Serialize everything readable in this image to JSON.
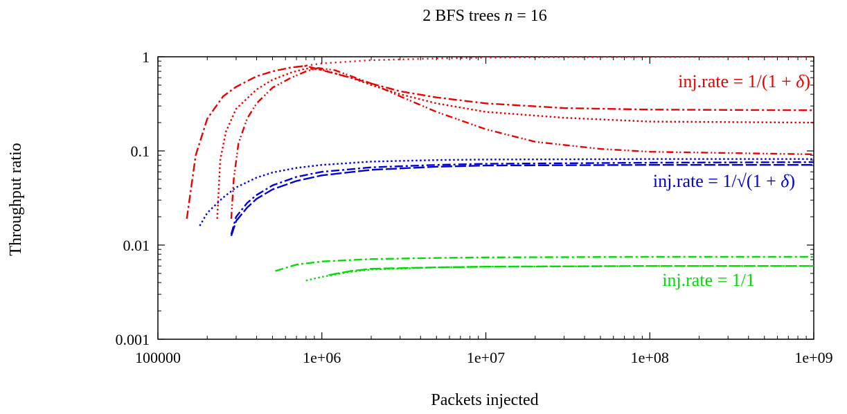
{
  "chart_data": {
    "type": "line",
    "title_prefix": "2 BFS trees ",
    "title_math": "n",
    "title_suffix": " = 16",
    "xlabel": "Packets injected",
    "ylabel": "Throughput ratio",
    "xscale": "log",
    "yscale": "log",
    "xlim": [
      100000,
      1000000000
    ],
    "ylim": [
      0.001,
      1
    ],
    "x_ticks": [
      100000,
      1000000,
      10000000,
      100000000,
      1000000000
    ],
    "x_tick_labels": [
      "100000",
      "1e+06",
      "1e+07",
      "1e+08",
      "1e+09"
    ],
    "y_ticks": [
      0.001,
      0.01,
      0.1,
      1
    ],
    "y_tick_labels": [
      "0.001",
      "0.01",
      "0.1",
      "1"
    ],
    "grid": false,
    "colors": {
      "red": "#ee0000",
      "blue": "#0000dd",
      "green": "#00dd00"
    },
    "annotations": [
      {
        "group": "red",
        "prefix": "inj.rate = 1/(1 + ",
        "math": "δ",
        "suffix": ")"
      },
      {
        "group": "blue",
        "prefix": "inj.rate = 1/√(1 + ",
        "math": "δ",
        "suffix": ")"
      },
      {
        "group": "green",
        "prefix": "inj.rate = 1/1",
        "math": "",
        "suffix": ""
      }
    ],
    "series": [
      {
        "group": "red",
        "dash": "dashdot",
        "x": [
          150000,
          170000,
          200000,
          250000,
          300000,
          400000,
          500000,
          650000,
          800000,
          1000000,
          1500000,
          2000000,
          3000000,
          5000000,
          10000000,
          30000000,
          100000000,
          1000000000
        ],
        "y": [
          0.019,
          0.09,
          0.22,
          0.38,
          0.48,
          0.62,
          0.7,
          0.77,
          0.8,
          0.72,
          0.6,
          0.52,
          0.43,
          0.37,
          0.32,
          0.285,
          0.275,
          0.27
        ]
      },
      {
        "group": "red",
        "dash": "dot",
        "x": [
          230000,
          240000,
          260000,
          300000,
          400000,
          500000,
          650000,
          800000,
          1000000,
          1500000,
          2000000,
          3000000,
          5000000,
          10000000,
          30000000,
          100000000,
          1000000000
        ],
        "y": [
          0.019,
          0.08,
          0.16,
          0.28,
          0.45,
          0.57,
          0.68,
          0.75,
          0.73,
          0.6,
          0.5,
          0.4,
          0.32,
          0.26,
          0.225,
          0.205,
          0.2
        ]
      },
      {
        "group": "red",
        "dash": "dashdotdot",
        "x": [
          280000,
          290000,
          310000,
          350000,
          400000,
          500000,
          650000,
          800000,
          950000,
          1200000,
          2000000,
          3000000,
          5000000,
          10000000,
          20000000,
          50000000,
          100000000,
          300000000,
          1000000000
        ],
        "y": [
          0.019,
          0.05,
          0.12,
          0.22,
          0.32,
          0.47,
          0.6,
          0.7,
          0.76,
          0.72,
          0.52,
          0.38,
          0.26,
          0.17,
          0.125,
          0.105,
          0.098,
          0.095,
          0.092
        ]
      },
      {
        "group": "red",
        "dash": "dotsparse",
        "x": [
          700000,
          1000000,
          2000000,
          5000000,
          10000000,
          30000000,
          100000000,
          1000000000
        ],
        "y": [
          0.78,
          0.85,
          0.92,
          0.96,
          0.98,
          0.99,
          0.995,
          1.0
        ]
      },
      {
        "group": "blue",
        "dash": "dot",
        "x": [
          180000,
          200000,
          250000,
          300000,
          400000,
          500000,
          700000,
          1000000,
          2000000,
          5000000,
          10000000,
          100000000,
          1000000000
        ],
        "y": [
          0.016,
          0.022,
          0.032,
          0.041,
          0.052,
          0.059,
          0.066,
          0.071,
          0.077,
          0.08,
          0.081,
          0.082,
          0.082
        ]
      },
      {
        "group": "blue",
        "dash": "dashdot",
        "x": [
          280000,
          300000,
          350000,
          400000,
          500000,
          700000,
          1000000,
          2000000,
          5000000,
          10000000,
          100000000,
          1000000000
        ],
        "y": [
          0.013,
          0.02,
          0.028,
          0.034,
          0.043,
          0.053,
          0.06,
          0.067,
          0.071,
          0.073,
          0.075,
          0.076
        ]
      },
      {
        "group": "blue",
        "dash": "long",
        "x": [
          280000,
          300000,
          350000,
          400000,
          500000,
          700000,
          1000000,
          2000000,
          5000000,
          10000000,
          100000000,
          1000000000
        ],
        "y": [
          0.0125,
          0.018,
          0.025,
          0.031,
          0.039,
          0.048,
          0.055,
          0.063,
          0.068,
          0.07,
          0.071,
          0.071
        ]
      },
      {
        "group": "green",
        "dash": "dashdot",
        "x": [
          520000,
          700000,
          1000000,
          2000000,
          5000000,
          10000000,
          100000000,
          1000000000
        ],
        "y": [
          0.0053,
          0.0062,
          0.0067,
          0.0071,
          0.0073,
          0.0074,
          0.0075,
          0.0075
        ]
      },
      {
        "group": "green",
        "dash": "dot",
        "x": [
          800000,
          1000000,
          1500000,
          2000000,
          5000000,
          10000000,
          100000000,
          1000000000
        ],
        "y": [
          0.0042,
          0.0046,
          0.0052,
          0.0055,
          0.0058,
          0.0059,
          0.006,
          0.006
        ]
      },
      {
        "group": "green",
        "dash": "long",
        "x": [
          1100000,
          1500000,
          2000000,
          5000000,
          10000000,
          100000000,
          1000000000
        ],
        "y": [
          0.0048,
          0.0053,
          0.0056,
          0.0058,
          0.0059,
          0.006,
          0.006
        ]
      }
    ]
  }
}
